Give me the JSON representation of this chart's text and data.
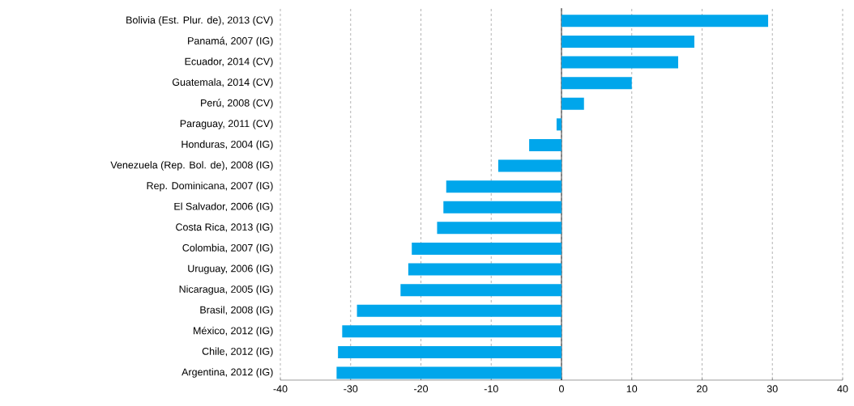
{
  "chart_data": {
    "type": "bar",
    "orientation": "horizontal",
    "categories": [
      "Bolivia (Est. Plur. de), 2013 (CV)",
      "Panamá, 2007 (IG)",
      "Ecuador, 2014 (CV)",
      "Guatemala, 2014 (CV)",
      "Perú, 2008 (CV)",
      "Paraguay, 2011 (CV)",
      "Honduras, 2004 (IG)",
      "Venezuela (Rep. Bol. de), 2008 (IG)",
      "Rep. Dominicana, 2007 (IG)",
      "El Salvador, 2006 (IG)",
      "Costa Rica, 2013 (IG)",
      "Colombia, 2007 (IG)",
      "Uruguay, 2006 (IG)",
      "Nicaragua, 2005 (IG)",
      "Brasil, 2008 (IG)",
      "México, 2012 (IG)",
      "Chile, 2012 (IG)",
      "Argentina, 2012 (IG)"
    ],
    "values": [
      29.4,
      18.9,
      16.6,
      10.0,
      3.2,
      -0.7,
      -4.6,
      -9.0,
      -16.4,
      -16.8,
      -17.7,
      -21.3,
      -21.8,
      -22.9,
      -29.1,
      -31.2,
      -31.8,
      -32.0
    ],
    "color": "#00a6eb",
    "xlim": [
      -40,
      40
    ],
    "xticks": [
      -40,
      -30,
      -20,
      -10,
      0,
      10,
      20,
      30,
      40
    ],
    "grid": "x"
  }
}
